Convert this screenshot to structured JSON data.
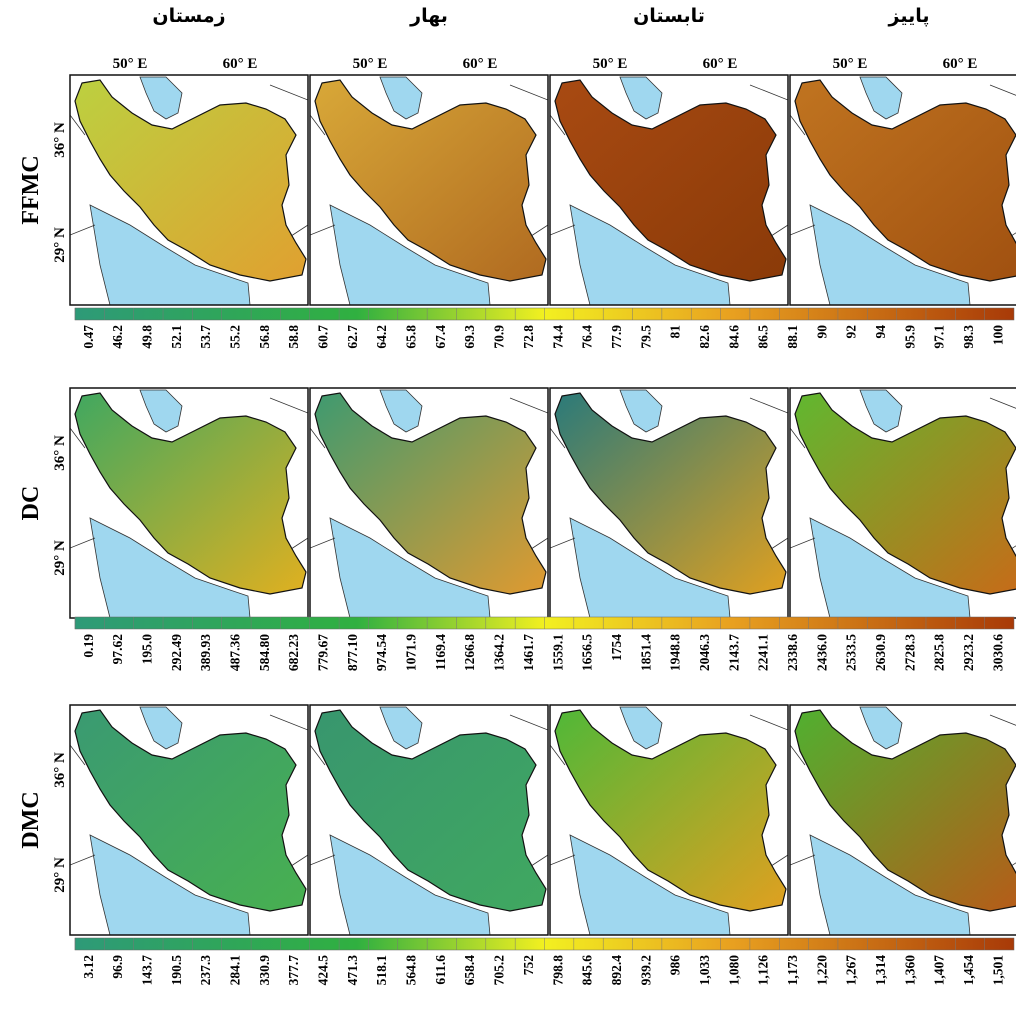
{
  "columns": [
    {
      "season": "زمستان",
      "longitudes": [
        "50° E",
        "60° E"
      ]
    },
    {
      "season": "بهار",
      "longitudes": [
        "50° E",
        "60° E"
      ]
    },
    {
      "season": "تابستان",
      "longitudes": [
        "50° E",
        "60° E"
      ]
    },
    {
      "season": "پاییز",
      "longitudes": [
        "50° E",
        "60° E"
      ]
    }
  ],
  "rows": [
    {
      "index": "FFMC",
      "latitudes": [
        "36° N",
        "29° N"
      ],
      "colorbar_labels": [
        "0.47",
        "46.2",
        "49.8",
        "52.1",
        "53.7",
        "55.2",
        "56.8",
        "58.8",
        "60.7",
        "62.7",
        "64.2",
        "65.8",
        "67.4",
        "69.3",
        "70.9",
        "72.8",
        "74.4",
        "76.4",
        "77.9",
        "79.5",
        "81",
        "82.6",
        "84.6",
        "86.5",
        "88.1",
        "90",
        "92",
        "94",
        "95.9",
        "97.1",
        "98.3",
        "100"
      ]
    },
    {
      "index": "DC",
      "latitudes": [
        "36° N",
        "29° N"
      ],
      "colorbar_labels": [
        "0.19",
        "97.62",
        "195.0",
        "292.49",
        "389.93",
        "487.36",
        "584.80",
        "682.23",
        "779.67",
        "877.10",
        "974.54",
        "1071.9",
        "1169.4",
        "1266.8",
        "1364.2",
        "1461.7",
        "1559.1",
        "1656.5",
        "1754",
        "1851.4",
        "1948.8",
        "2046.3",
        "2143.7",
        "2241.1",
        "2338.6",
        "2436.0",
        "2533.5",
        "2630.9",
        "2728.3",
        "2825.8",
        "2923.2",
        "3030.6"
      ]
    },
    {
      "index": "DMC",
      "latitudes": [
        "36° N",
        "29° N"
      ],
      "colorbar_labels": [
        "3.12",
        "96.9",
        "143.7",
        "190.5",
        "237.3",
        "284.1",
        "330.9",
        "377.7",
        "424.5",
        "471.3",
        "518.1",
        "564.8",
        "611.6",
        "658.4",
        "705.2",
        "752",
        "798.8",
        "845.6",
        "892.4",
        "939.2",
        "986",
        "1,033",
        "1,080",
        "1,126",
        "1,173",
        "1,220",
        "1,267",
        "1,314",
        "1,360",
        "1,407",
        "1,454",
        "1,501"
      ]
    }
  ]
}
